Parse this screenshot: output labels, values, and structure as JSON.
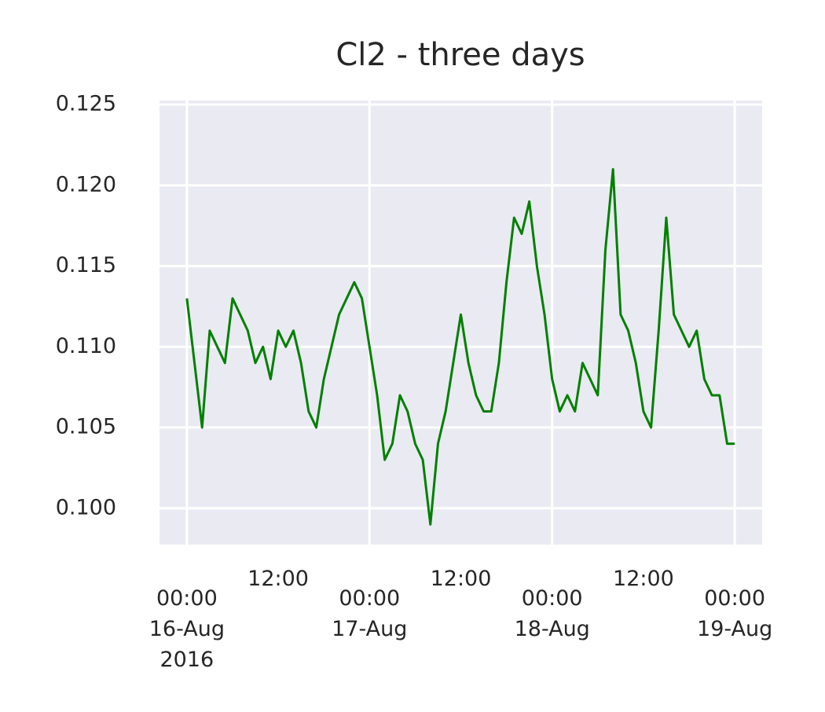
{
  "chart_data": {
    "type": "line",
    "title": "Cl2 - three days",
    "x": [
      "2016-08-16 00:00",
      "2016-08-16 01:00",
      "2016-08-16 02:00",
      "2016-08-16 03:00",
      "2016-08-16 04:00",
      "2016-08-16 05:00",
      "2016-08-16 06:00",
      "2016-08-16 07:00",
      "2016-08-16 08:00",
      "2016-08-16 09:00",
      "2016-08-16 10:00",
      "2016-08-16 11:00",
      "2016-08-16 12:00",
      "2016-08-16 13:00",
      "2016-08-16 14:00",
      "2016-08-16 15:00",
      "2016-08-16 16:00",
      "2016-08-16 17:00",
      "2016-08-16 18:00",
      "2016-08-16 19:00",
      "2016-08-16 20:00",
      "2016-08-16 21:00",
      "2016-08-16 22:00",
      "2016-08-16 23:00",
      "2016-08-17 00:00",
      "2016-08-17 01:00",
      "2016-08-17 02:00",
      "2016-08-17 03:00",
      "2016-08-17 04:00",
      "2016-08-17 05:00",
      "2016-08-17 06:00",
      "2016-08-17 07:00",
      "2016-08-17 08:00",
      "2016-08-17 09:00",
      "2016-08-17 10:00",
      "2016-08-17 11:00",
      "2016-08-17 12:00",
      "2016-08-17 13:00",
      "2016-08-17 14:00",
      "2016-08-17 15:00",
      "2016-08-17 16:00",
      "2016-08-17 17:00",
      "2016-08-17 18:00",
      "2016-08-17 19:00",
      "2016-08-17 20:00",
      "2016-08-17 21:00",
      "2016-08-17 22:00",
      "2016-08-17 23:00",
      "2016-08-18 00:00",
      "2016-08-18 01:00",
      "2016-08-18 02:00",
      "2016-08-18 03:00",
      "2016-08-18 04:00",
      "2016-08-18 05:00",
      "2016-08-18 06:00",
      "2016-08-18 07:00",
      "2016-08-18 08:00",
      "2016-08-18 09:00",
      "2016-08-18 10:00",
      "2016-08-18 11:00",
      "2016-08-18 12:00",
      "2016-08-18 13:00",
      "2016-08-18 14:00",
      "2016-08-18 15:00",
      "2016-08-18 16:00",
      "2016-08-18 17:00",
      "2016-08-18 18:00",
      "2016-08-18 19:00",
      "2016-08-18 20:00",
      "2016-08-18 21:00",
      "2016-08-18 22:00",
      "2016-08-18 23:00",
      "2016-08-19 00:00"
    ],
    "series": [
      {
        "name": "Cl2",
        "color": "#008000",
        "values": [
          0.113,
          0.109,
          0.105,
          0.111,
          0.11,
          0.109,
          0.113,
          0.112,
          0.111,
          0.109,
          0.11,
          0.108,
          0.111,
          0.11,
          0.111,
          0.109,
          0.106,
          0.105,
          0.108,
          0.11,
          0.112,
          0.113,
          0.114,
          0.113,
          0.11,
          0.107,
          0.103,
          0.104,
          0.107,
          0.106,
          0.104,
          0.103,
          0.099,
          0.104,
          0.106,
          0.109,
          0.112,
          0.109,
          0.107,
          0.106,
          0.106,
          0.109,
          0.114,
          0.118,
          0.117,
          0.119,
          0.115,
          0.112,
          0.108,
          0.106,
          0.107,
          0.106,
          0.109,
          0.108,
          0.107,
          0.116,
          0.121,
          0.112,
          0.111,
          0.109,
          0.106,
          0.105,
          0.111,
          0.118,
          0.112,
          0.111,
          0.11,
          0.111,
          0.108,
          0.107,
          0.107,
          0.104,
          0.104
        ]
      }
    ],
    "xlim": [
      "2016-08-15 20:24",
      "2016-08-19 03:36"
    ],
    "xticks": [
      {
        "value": "2016-08-16 00:00",
        "label": "00:00\n16-Aug\n2016"
      },
      {
        "value": "2016-08-17 00:00",
        "label": "00:00\n17-Aug"
      },
      {
        "value": "2016-08-18 00:00",
        "label": "00:00\n18-Aug"
      },
      {
        "value": "2016-08-19 00:00",
        "label": "00:00\n19-Aug"
      }
    ],
    "xminorticks": [
      {
        "value": "2016-08-16 12:00",
        "label": "12:00"
      },
      {
        "value": "2016-08-17 12:00",
        "label": "12:00"
      },
      {
        "value": "2016-08-18 12:00",
        "label": "12:00"
      }
    ],
    "ylim": [
      0.09775,
      0.12525
    ],
    "yticks": [
      {
        "value": 0.1,
        "label": "0.100"
      },
      0.105,
      {
        "value": 0.11,
        "label": "0.110"
      },
      0.115,
      {
        "value": 0.12,
        "label": "0.120"
      },
      0.125
    ],
    "grid": true
  }
}
